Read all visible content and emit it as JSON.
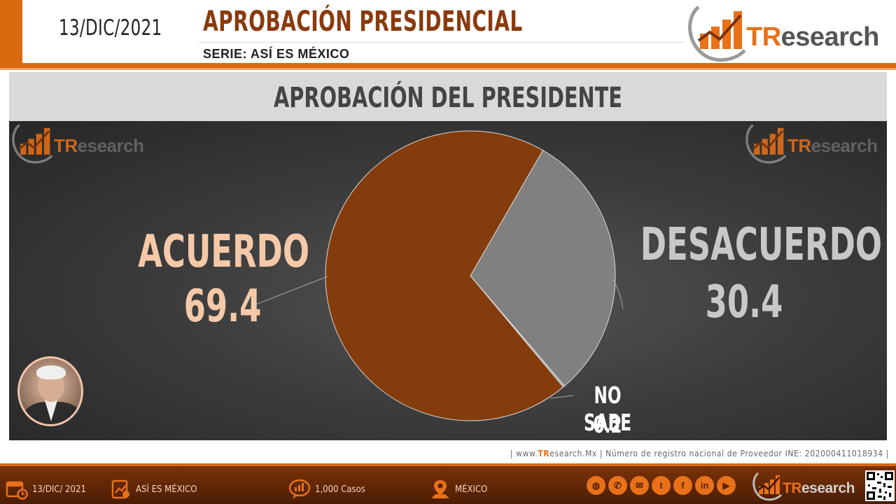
{
  "header": {
    "date": "13/DIC/2021",
    "title": "APROBACIÓN PRESIDENCIAL",
    "subtitle": "SERIE: ASÍ ES MÉXICO",
    "logo": {
      "prefix": "TR",
      "suffix": "esearch",
      "icon": "bar-chart-arrow-icon"
    }
  },
  "panel": {
    "title": "APROBACIÓN DEL PRESIDENTE"
  },
  "chart_data": {
    "type": "pie",
    "title": "APROBACIÓN DEL PRESIDENTE",
    "slices": [
      {
        "label": "ACUERDO",
        "value": 69.4,
        "display": "69.4",
        "color": "#843c0c"
      },
      {
        "label": "DESACUERDO",
        "value": 30.4,
        "display": "30.4",
        "color": "#808080"
      },
      {
        "label": "NO SABE",
        "value": 0.2,
        "display": "0.2",
        "color": "#a6a6a6"
      }
    ],
    "legend": "none",
    "label_colors": {
      "ACUERDO": "#f5c9a8",
      "DESACUERDO": "#c8c8c8",
      "NO SABE": "#ffffff"
    }
  },
  "source": {
    "pre": "| www.",
    "brand_tr": "TR",
    "brand_rest": "esearch.Mx",
    "post": " | Número de registro nacional de Proveedor INE: 202000411018934 |"
  },
  "footer": {
    "date": "13/DIC/ 2021",
    "series": "ASÍ ES MÉXICO",
    "cases": "1,000 Casos",
    "country": "MÉXICO",
    "social": [
      {
        "icon": "globe-icon",
        "glyph": "◍"
      },
      {
        "icon": "phone-icon",
        "glyph": "✆"
      },
      {
        "icon": "email-icon",
        "glyph": "✉"
      },
      {
        "icon": "twitter-icon",
        "glyph": "t"
      },
      {
        "icon": "facebook-icon",
        "glyph": "f"
      },
      {
        "icon": "linkedin-icon",
        "glyph": "in"
      },
      {
        "icon": "youtube-icon",
        "glyph": "▶"
      }
    ]
  },
  "colors": {
    "accent": "#d86a10",
    "brand_orange": "#e8711a",
    "title_brown": "#8a3a0c"
  }
}
